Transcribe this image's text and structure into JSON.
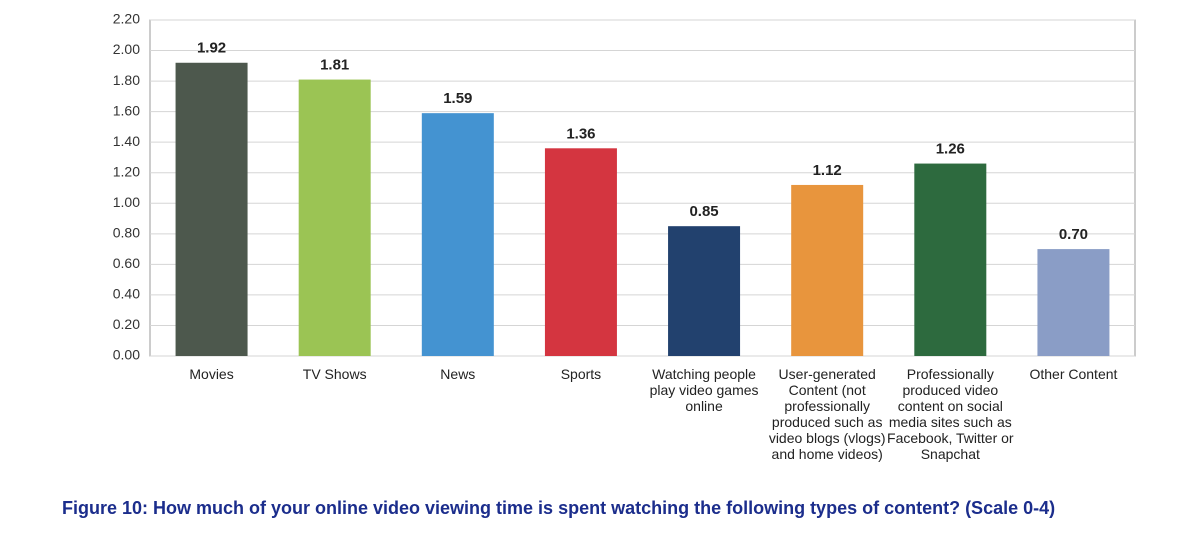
{
  "chart_data": {
    "type": "bar",
    "caption": "Figure 10: How much of your online video viewing time is spent watching the following types of content? (Scale 0-4)",
    "categories": [
      "Movies",
      "TV Shows",
      "News",
      "Sports",
      "Watching people play video games online",
      "User-generated Content (not professionally produced such as video blogs (vlogs) and home videos)",
      "Professionally produced video content on social media sites such as Facebook, Twitter or Snapchat",
      "Other Content"
    ],
    "values": [
      1.92,
      1.81,
      1.59,
      1.36,
      0.85,
      1.12,
      1.26,
      0.7
    ],
    "value_labels": [
      "1.92",
      "1.81",
      "1.59",
      "1.36",
      "0.85",
      "1.12",
      "1.26",
      "0.70"
    ],
    "colors": [
      "#4d584d",
      "#9bc454",
      "#4493d1",
      "#d43540",
      "#22416e",
      "#e8953d",
      "#2d6a3e",
      "#8a9dc6"
    ],
    "ylim": [
      0,
      2.2
    ],
    "yticks": [
      {
        "value": 0,
        "label": "0.00"
      },
      {
        "value": 0.2,
        "label": "0.20"
      },
      {
        "value": 0.4,
        "label": "0.40"
      },
      {
        "value": 0.6,
        "label": "0.60"
      },
      {
        "value": 0.8,
        "label": "0.80"
      },
      {
        "value": 1,
        "label": "1.00"
      },
      {
        "value": 1.2,
        "label": "1.20"
      },
      {
        "value": 1.4,
        "label": "1.40"
      },
      {
        "value": 1.6,
        "label": "1.60"
      },
      {
        "value": 1.8,
        "label": "1.80"
      },
      {
        "value": 2,
        "label": "2.00"
      },
      {
        "value": 2.2,
        "label": "2.20"
      }
    ],
    "grid": true
  }
}
